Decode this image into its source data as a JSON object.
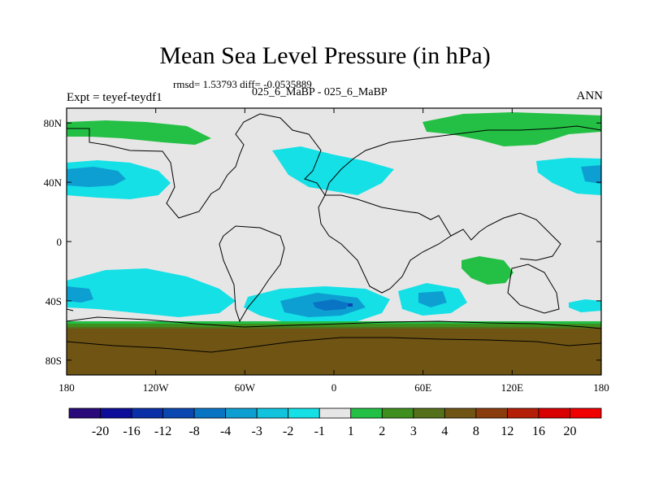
{
  "chart_data": {
    "type": "heatmap",
    "title": "Mean Sea Level Pressure (in hPa)",
    "stats_text": "rmsd= 1.53793 diff= -0.0535889",
    "experiment_label": "Expt = teyef-teydf1",
    "subtitle": "025_6_MaBP - 025_6_MaBP",
    "season": "ANN",
    "x_ticks": [
      "180",
      "120W",
      "60W",
      "0",
      "60E",
      "120E",
      "180"
    ],
    "y_ticks": [
      "80N",
      "40N",
      "0",
      "40S",
      "80S"
    ],
    "xlim": [
      -180,
      180
    ],
    "ylim": [
      -90,
      90
    ],
    "colorbar": {
      "labels": [
        "-20",
        "-16",
        "-12",
        "-8",
        "-4",
        "-3",
        "-2",
        "-1",
        "1",
        "2",
        "3",
        "4",
        "8",
        "12",
        "16",
        "20"
      ],
      "colors": [
        "#2a0a7a",
        "#0d0d99",
        "#0b2fa6",
        "#0a47b0",
        "#0a74c4",
        "#0e9fd2",
        "#12c3de",
        "#14e0e6",
        "#e6e6e6",
        "#24c045",
        "#3f8f1f",
        "#54701a",
        "#6f5414",
        "#8b3c0c",
        "#b51e06",
        "#d90000",
        "#f00000"
      ]
    },
    "regions": [
      {
        "name": "arctic-positive",
        "value": 2
      },
      {
        "name": "north-pacific-low",
        "value": -2
      },
      {
        "name": "north-atlantic-low",
        "value": -1
      },
      {
        "name": "south-pacific-low",
        "value": -2
      },
      {
        "name": "south-atlantic-low",
        "value": -3
      },
      {
        "name": "south-indian-low",
        "value": -2
      },
      {
        "name": "australia-high",
        "value": 2
      },
      {
        "name": "antarctic-high",
        "value": 4
      }
    ]
  },
  "colors": {
    "background": "#e6e6e6",
    "coast": "#000000"
  }
}
